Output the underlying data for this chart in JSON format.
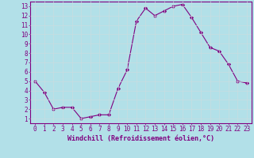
{
  "x": [
    0,
    1,
    2,
    3,
    4,
    5,
    6,
    7,
    8,
    9,
    10,
    11,
    12,
    13,
    14,
    15,
    16,
    17,
    18,
    19,
    20,
    21,
    22,
    23
  ],
  "y": [
    5,
    3.8,
    2,
    2.2,
    2.2,
    1,
    1.2,
    1.4,
    1.4,
    4.2,
    6.2,
    11.4,
    12.8,
    12,
    12.5,
    13,
    13.2,
    11.8,
    10.2,
    8.6,
    8.2,
    6.8,
    5,
    4.8
  ],
  "line_color": "#800080",
  "marker": "D",
  "markersize": 2.2,
  "linewidth": 0.8,
  "xlabel": "Windchill (Refroidissement éolien,°C)",
  "xlabel_fontsize": 6.0,
  "xlim": [
    -0.5,
    23.5
  ],
  "ylim": [
    0.5,
    13.5
  ],
  "yticks": [
    1,
    2,
    3,
    4,
    5,
    6,
    7,
    8,
    9,
    10,
    11,
    12,
    13
  ],
  "xticks": [
    0,
    1,
    2,
    3,
    4,
    5,
    6,
    7,
    8,
    9,
    10,
    11,
    12,
    13,
    14,
    15,
    16,
    17,
    18,
    19,
    20,
    21,
    22,
    23
  ],
  "bg_color": "#b2e0e8",
  "grid_color": "#c8dde0",
  "tick_color": "#800080",
  "tick_fontsize": 5.5,
  "tick_label_color": "#800080",
  "spine_color": "#800080"
}
